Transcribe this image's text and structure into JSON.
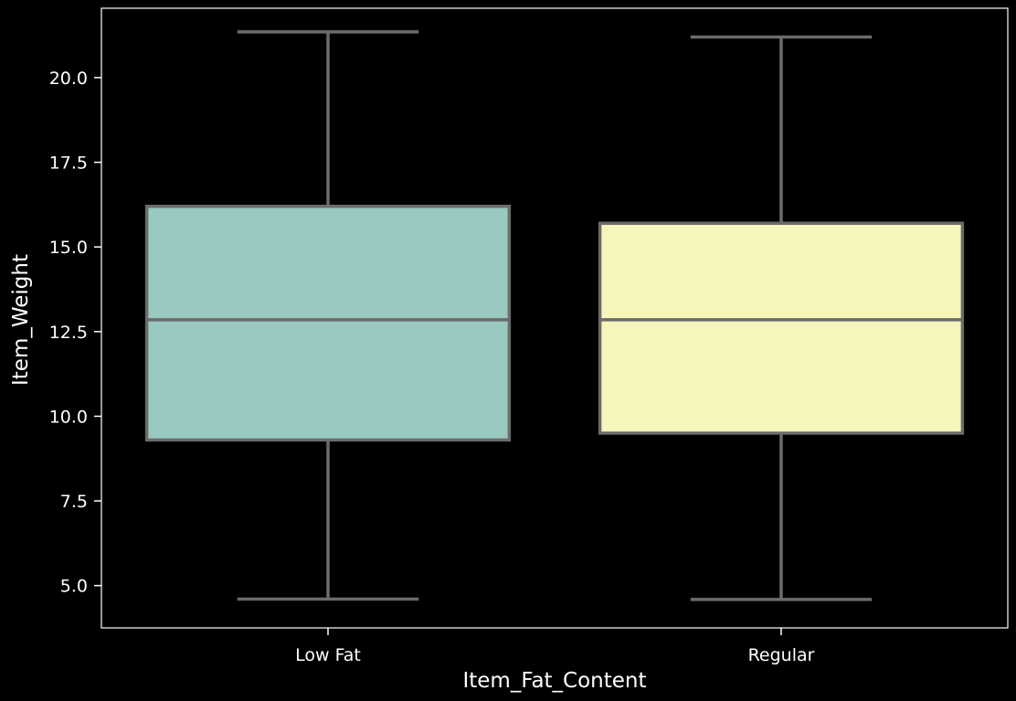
{
  "chart_data": {
    "type": "box",
    "title": "",
    "xlabel": "Item_Fat_Content",
    "ylabel": "Item_Weight",
    "categories": [
      "Low Fat",
      "Regular"
    ],
    "ylim": [
      3.75,
      22.05
    ],
    "yticks": [
      5.0,
      7.5,
      10.0,
      12.5,
      15.0,
      17.5,
      20.0
    ],
    "ytick_labels": [
      "5.0",
      "7.5",
      "10.0",
      "12.5",
      "15.0",
      "17.5",
      "20.0"
    ],
    "grid": false,
    "legend": "none",
    "boxes": [
      {
        "category": "Low Fat",
        "whisker_low": 4.6,
        "q1": 9.3,
        "median": 12.85,
        "q3": 16.2,
        "whisker_high": 21.35,
        "color": "#99c9c1"
      },
      {
        "category": "Regular",
        "whisker_low": 4.59,
        "q1": 9.5,
        "median": 12.85,
        "q3": 15.7,
        "whisker_high": 21.2,
        "color": "#f5f5bc"
      }
    ],
    "colors": {
      "background": "#000000",
      "axes": "#ffffff",
      "box_edge": "#6b6b6b",
      "text": "#ffffff"
    }
  }
}
